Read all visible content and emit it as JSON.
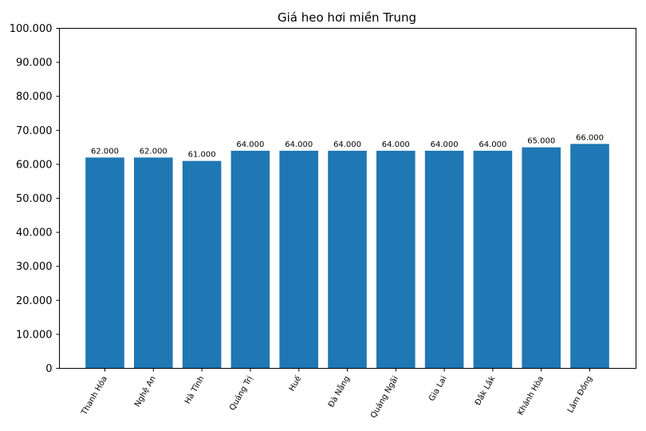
{
  "chart_data": {
    "type": "bar",
    "title": "Giá heo hơi miền Trung",
    "xlabel": "",
    "ylabel": "",
    "categories": [
      "Thanh Hóa",
      "Nghệ An",
      "Hà Tĩnh",
      "Quảng Trị",
      "Huế",
      "Đà Nẵng",
      "Quảng Ngãi",
      "Gia Lai",
      "Đắk Lắk",
      "Khánh Hòa",
      "Lâm Đồng"
    ],
    "values": [
      62000,
      62000,
      61000,
      64000,
      64000,
      64000,
      64000,
      64000,
      64000,
      65000,
      66000
    ],
    "value_labels": [
      "62.000",
      "62.000",
      "61.000",
      "64.000",
      "64.000",
      "64.000",
      "64.000",
      "64.000",
      "64.000",
      "65.000",
      "66.000"
    ],
    "ylim": [
      0,
      100000
    ],
    "yticks": [
      0,
      10000,
      20000,
      30000,
      40000,
      50000,
      60000,
      70000,
      80000,
      90000,
      100000
    ],
    "ytick_labels": [
      "0",
      "10.000",
      "20.000",
      "30.000",
      "40.000",
      "50.000",
      "60.000",
      "70.000",
      "80.000",
      "90.000",
      "100.000"
    ],
    "grid": false,
    "bar_color": "#1f77b4"
  }
}
